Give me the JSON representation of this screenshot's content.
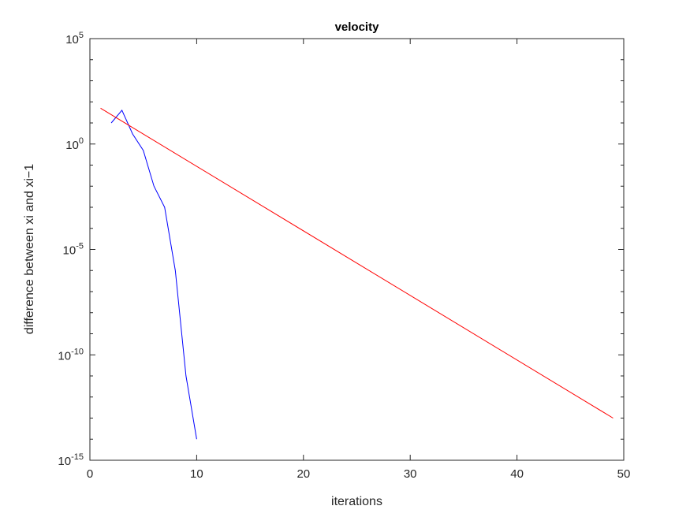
{
  "chart_data": {
    "type": "line",
    "title": "velocity",
    "xlabel": "iterations",
    "ylabel": "difference between xi and xi−1",
    "xlim": [
      0,
      50
    ],
    "ylim_exponent": [
      -15,
      5
    ],
    "yscale": "log",
    "x_ticks": [
      "0",
      "10",
      "20",
      "30",
      "40",
      "50"
    ],
    "y_ticks": [
      {
        "base": "10",
        "exp": "-15"
      },
      {
        "base": "10",
        "exp": "-10"
      },
      {
        "base": "10",
        "exp": "-5"
      },
      {
        "base": "10",
        "exp": "0"
      },
      {
        "base": "10",
        "exp": "5"
      }
    ],
    "grid": false,
    "legend": "none",
    "series": [
      {
        "color": "#0000ff",
        "x": [
          2,
          3,
          4,
          5,
          6,
          7,
          8,
          9,
          10
        ],
        "y": [
          10,
          40,
          3,
          0.5,
          0.01,
          0.001,
          1e-06,
          1e-11,
          1e-14
        ]
      },
      {
        "color": "#ff0000",
        "x": [
          1,
          49
        ],
        "y": [
          50,
          1e-13
        ]
      }
    ]
  }
}
